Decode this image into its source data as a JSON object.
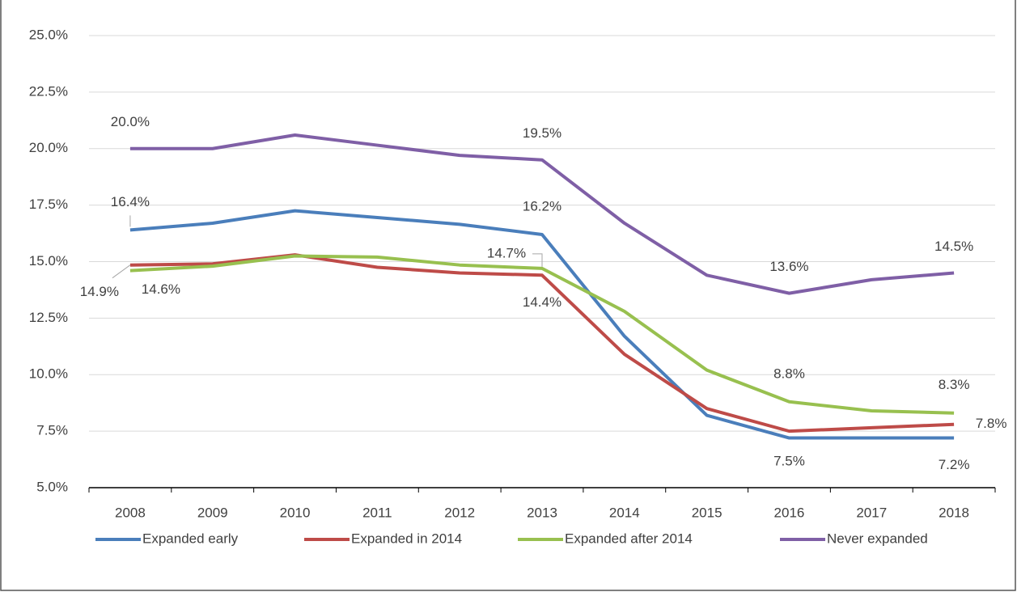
{
  "chart_data": {
    "type": "line",
    "categories": [
      "2008",
      "2009",
      "2010",
      "2011",
      "2012",
      "2013",
      "2014",
      "2015",
      "2016",
      "2017",
      "2018"
    ],
    "ylim": [
      5,
      25
    ],
    "yticks": [
      {
        "value": 5,
        "label": "5.0%"
      },
      {
        "value": 7.5,
        "label": "7.5%"
      },
      {
        "value": 10,
        "label": "10.0%"
      },
      {
        "value": 12.5,
        "label": "12.5%"
      },
      {
        "value": 15,
        "label": "15.0%"
      },
      {
        "value": 17.5,
        "label": "17.5%"
      },
      {
        "value": 20,
        "label": "20.0%"
      },
      {
        "value": 22.5,
        "label": "22.5%"
      },
      {
        "value": 25,
        "label": "25.0%"
      }
    ],
    "grid": true,
    "legend": "bottom",
    "series": [
      {
        "name": "Expanded early",
        "color": "#4a7ebb",
        "values": [
          16.4,
          16.7,
          17.25,
          16.95,
          16.65,
          16.2,
          11.7,
          8.2,
          7.2,
          7.2,
          7.2
        ],
        "value_labels": [
          "16.4%",
          null,
          null,
          null,
          null,
          "16.2%",
          null,
          null,
          null,
          null,
          "7.2%"
        ]
      },
      {
        "name": "Expanded in 2014",
        "color": "#be4b48",
        "values": [
          14.85,
          14.9,
          15.3,
          14.75,
          14.5,
          14.4,
          10.9,
          8.5,
          7.5,
          7.65,
          7.8
        ],
        "value_labels": [
          "14.9%",
          null,
          null,
          null,
          null,
          "14.4%",
          null,
          null,
          "7.5%",
          null,
          "7.8%"
        ]
      },
      {
        "name": "Expanded after 2014",
        "color": "#98c04f",
        "values": [
          14.6,
          14.8,
          15.25,
          15.2,
          14.85,
          14.7,
          12.8,
          10.2,
          8.8,
          8.4,
          8.3
        ],
        "value_labels": [
          "14.6%",
          null,
          null,
          null,
          null,
          "14.7%",
          null,
          null,
          "8.8%",
          null,
          "8.3%"
        ]
      },
      {
        "name": "Never expanded",
        "color": "#7f5fa6",
        "values": [
          20.0,
          20.0,
          20.6,
          20.15,
          19.7,
          19.5,
          16.7,
          14.4,
          13.6,
          14.2,
          14.5
        ],
        "value_labels": [
          "20.0%",
          null,
          null,
          null,
          null,
          "19.5%",
          null,
          null,
          "13.6%",
          null,
          "14.5%"
        ]
      }
    ]
  }
}
